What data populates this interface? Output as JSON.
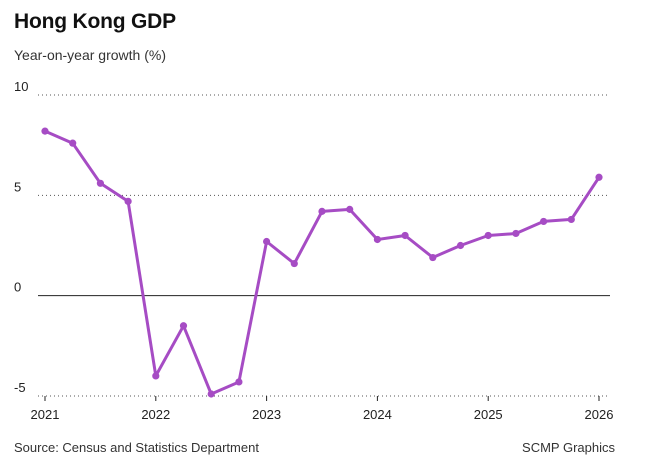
{
  "header": {
    "title": "Hong Kong GDP",
    "subtitle": "Year-on-year growth (%)"
  },
  "footer": {
    "source": "Source: Census and Statistics Department",
    "credit": "SCMP Graphics"
  },
  "colors": {
    "series": "#a64cc4",
    "grid": "#555555",
    "zero_line": "#222222"
  },
  "chart_data": {
    "type": "line",
    "title": "Hong Kong GDP",
    "subtitle": "Year-on-year growth (%)",
    "xlabel": "",
    "ylabel": "",
    "xlim": [
      2021,
      2026
    ],
    "ylim": [
      -5,
      10
    ],
    "x_ticks": [
      "2021",
      "2022",
      "2023",
      "2024",
      "2025",
      "2026"
    ],
    "y_ticks": [
      "10",
      "5",
      "0",
      "-5"
    ],
    "grid": "horizontal dotted",
    "series": [
      {
        "x": [
          2021.0,
          2021.25,
          2021.5,
          2021.75,
          2022.0,
          2022.25,
          2022.5,
          2022.75,
          2023.0,
          2023.25,
          2023.5,
          2023.75,
          2024.0,
          2024.25,
          2024.5,
          2024.75,
          2025.0,
          2025.25,
          2025.5,
          2025.75,
          2026.0
        ],
        "values": [
          8.2,
          7.6,
          5.6,
          4.7,
          -4.0,
          -1.5,
          -4.9,
          -4.3,
          2.7,
          1.6,
          4.2,
          4.3,
          2.8,
          3.0,
          1.9,
          2.5,
          3.0,
          3.1,
          3.7,
          3.8,
          5.9
        ]
      }
    ]
  }
}
